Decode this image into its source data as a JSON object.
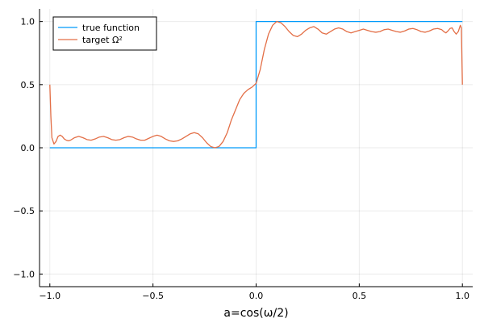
{
  "chart_data": {
    "type": "line",
    "title": "",
    "xlabel": "a=cos(ω/2)",
    "ylabel": "",
    "xlim": [
      -1.05,
      1.05
    ],
    "ylim": [
      -1.1,
      1.1
    ],
    "xticks": [
      -1.0,
      -0.5,
      0.0,
      0.5,
      1.0
    ],
    "xtick_labels": [
      "−1.0",
      "−0.5",
      "0.0",
      "0.5",
      "1.0"
    ],
    "yticks": [
      -1.0,
      -0.5,
      0.0,
      0.5,
      1.0
    ],
    "ytick_labels": [
      "−1.0",
      "−0.5",
      "0.0",
      "0.5",
      "1.0"
    ],
    "grid": true,
    "legend_position": "top-left",
    "series": [
      {
        "name": "true function",
        "color": "#009AFA",
        "x": [
          -1.0,
          0.0,
          0.0,
          1.0
        ],
        "y": [
          0.0,
          0.0,
          1.0,
          1.0
        ]
      },
      {
        "name": "target Ω²",
        "color": "#E36F47",
        "x": [
          -1.0,
          -0.995,
          -0.99,
          -0.98,
          -0.97,
          -0.96,
          -0.95,
          -0.94,
          -0.93,
          -0.92,
          -0.91,
          -0.9,
          -0.88,
          -0.86,
          -0.84,
          -0.82,
          -0.8,
          -0.78,
          -0.76,
          -0.74,
          -0.72,
          -0.7,
          -0.68,
          -0.66,
          -0.64,
          -0.62,
          -0.6,
          -0.58,
          -0.56,
          -0.54,
          -0.52,
          -0.5,
          -0.48,
          -0.46,
          -0.44,
          -0.42,
          -0.4,
          -0.38,
          -0.36,
          -0.34,
          -0.32,
          -0.3,
          -0.28,
          -0.26,
          -0.24,
          -0.22,
          -0.2,
          -0.18,
          -0.16,
          -0.14,
          -0.13,
          -0.12,
          -0.1,
          -0.08,
          -0.06,
          -0.04,
          -0.02,
          0.0,
          0.02,
          0.04,
          0.06,
          0.08,
          0.1,
          0.12,
          0.14,
          0.16,
          0.18,
          0.2,
          0.22,
          0.24,
          0.26,
          0.28,
          0.3,
          0.32,
          0.34,
          0.36,
          0.38,
          0.4,
          0.42,
          0.44,
          0.46,
          0.48,
          0.5,
          0.52,
          0.54,
          0.56,
          0.58,
          0.6,
          0.62,
          0.64,
          0.66,
          0.68,
          0.7,
          0.72,
          0.74,
          0.76,
          0.78,
          0.8,
          0.82,
          0.84,
          0.86,
          0.88,
          0.9,
          0.91,
          0.92,
          0.93,
          0.94,
          0.95,
          0.96,
          0.97,
          0.98,
          0.99,
          0.995,
          1.0
        ],
        "y": [
          0.5,
          0.25,
          0.08,
          0.03,
          0.05,
          0.09,
          0.1,
          0.09,
          0.07,
          0.06,
          0.055,
          0.06,
          0.08,
          0.09,
          0.08,
          0.065,
          0.06,
          0.07,
          0.085,
          0.09,
          0.08,
          0.065,
          0.06,
          0.065,
          0.08,
          0.09,
          0.085,
          0.07,
          0.06,
          0.06,
          0.075,
          0.09,
          0.1,
          0.09,
          0.07,
          0.055,
          0.05,
          0.055,
          0.07,
          0.09,
          0.11,
          0.12,
          0.11,
          0.08,
          0.04,
          0.01,
          0.0,
          0.01,
          0.05,
          0.12,
          0.17,
          0.22,
          0.3,
          0.38,
          0.43,
          0.46,
          0.48,
          0.51,
          0.62,
          0.78,
          0.9,
          0.97,
          1.0,
          0.99,
          0.96,
          0.92,
          0.89,
          0.88,
          0.9,
          0.93,
          0.95,
          0.96,
          0.94,
          0.91,
          0.9,
          0.92,
          0.94,
          0.95,
          0.94,
          0.92,
          0.91,
          0.92,
          0.93,
          0.94,
          0.93,
          0.92,
          0.915,
          0.92,
          0.935,
          0.94,
          0.93,
          0.92,
          0.915,
          0.925,
          0.94,
          0.945,
          0.935,
          0.92,
          0.915,
          0.925,
          0.94,
          0.945,
          0.935,
          0.92,
          0.91,
          0.925,
          0.945,
          0.95,
          0.92,
          0.9,
          0.92,
          0.97,
          0.95,
          0.5
        ]
      }
    ]
  }
}
